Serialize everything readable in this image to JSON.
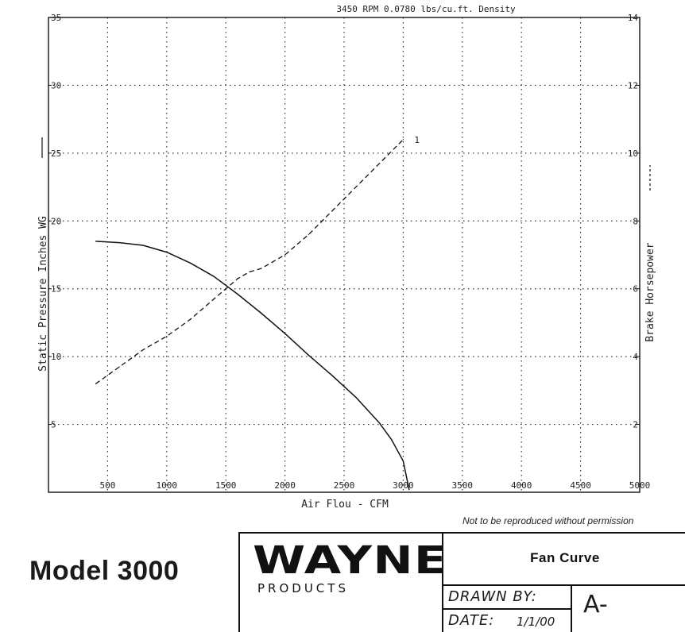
{
  "chart_data": {
    "type": "line",
    "title": "3450 RPM  0.0780 lbs/cu.ft. Density",
    "xlabel": "Air Flou - CFM",
    "ylabel": "Static Pressure Inches WG",
    "y2label": "Brake Horsepower",
    "xlim": [
      0,
      5000
    ],
    "ylim": [
      0,
      35
    ],
    "y2lim": [
      0,
      14
    ],
    "xticks": [
      500,
      1000,
      1500,
      2000,
      2500,
      3000,
      3500,
      4000,
      4500,
      5000
    ],
    "xtick_labels": [
      "500",
      "1000",
      "1500",
      "2000",
      "2500",
      "3000",
      "3500",
      "4000",
      "4500",
      "5000"
    ],
    "yticks": [
      5,
      10,
      15,
      20,
      25,
      30,
      35
    ],
    "ytick_labels": [
      "5",
      "10",
      "15",
      "20",
      "25",
      "30",
      "35"
    ],
    "y2ticks": [
      2,
      4,
      6,
      8,
      10,
      12,
      14
    ],
    "y2tick_labels": [
      "2",
      "4",
      "6",
      "8",
      "10",
      "12",
      "14"
    ],
    "grid": true,
    "ylabel_marker": "solid",
    "y2label_marker": "dashed",
    "series": [
      {
        "axis": "left",
        "style": "solid",
        "x": [
          400,
          600,
          800,
          1000,
          1200,
          1400,
          1600,
          1800,
          2000,
          2200,
          2400,
          2600,
          2800,
          2900,
          3000,
          3050
        ],
        "y": [
          18.5,
          18.4,
          18.2,
          17.7,
          16.9,
          15.9,
          14.6,
          13.2,
          11.7,
          10.1,
          8.6,
          7.0,
          5.1,
          3.9,
          2.3,
          0.2
        ]
      },
      {
        "axis": "right",
        "style": "dashed",
        "label": "1",
        "x": [
          400,
          600,
          800,
          1000,
          1200,
          1400,
          1600,
          1700,
          1800,
          2000,
          2200,
          2400,
          2600,
          2800,
          3000
        ],
        "y": [
          3.2,
          3.7,
          4.2,
          4.6,
          5.1,
          5.7,
          6.3,
          6.5,
          6.6,
          7.0,
          7.6,
          8.3,
          9.0,
          9.7,
          10.4
        ]
      }
    ]
  },
  "notice": "Not to be reproduced without permission",
  "model": "Model  3000",
  "title_block": {
    "logo_text": "WAYNE",
    "logo_subtext": "PRODUCTS",
    "doc_title": "Fan Curve",
    "drawn_by_label": "DRAWN BY:",
    "date_label": "DATE:",
    "date_value": "1/1/00",
    "revision": "A-"
  }
}
